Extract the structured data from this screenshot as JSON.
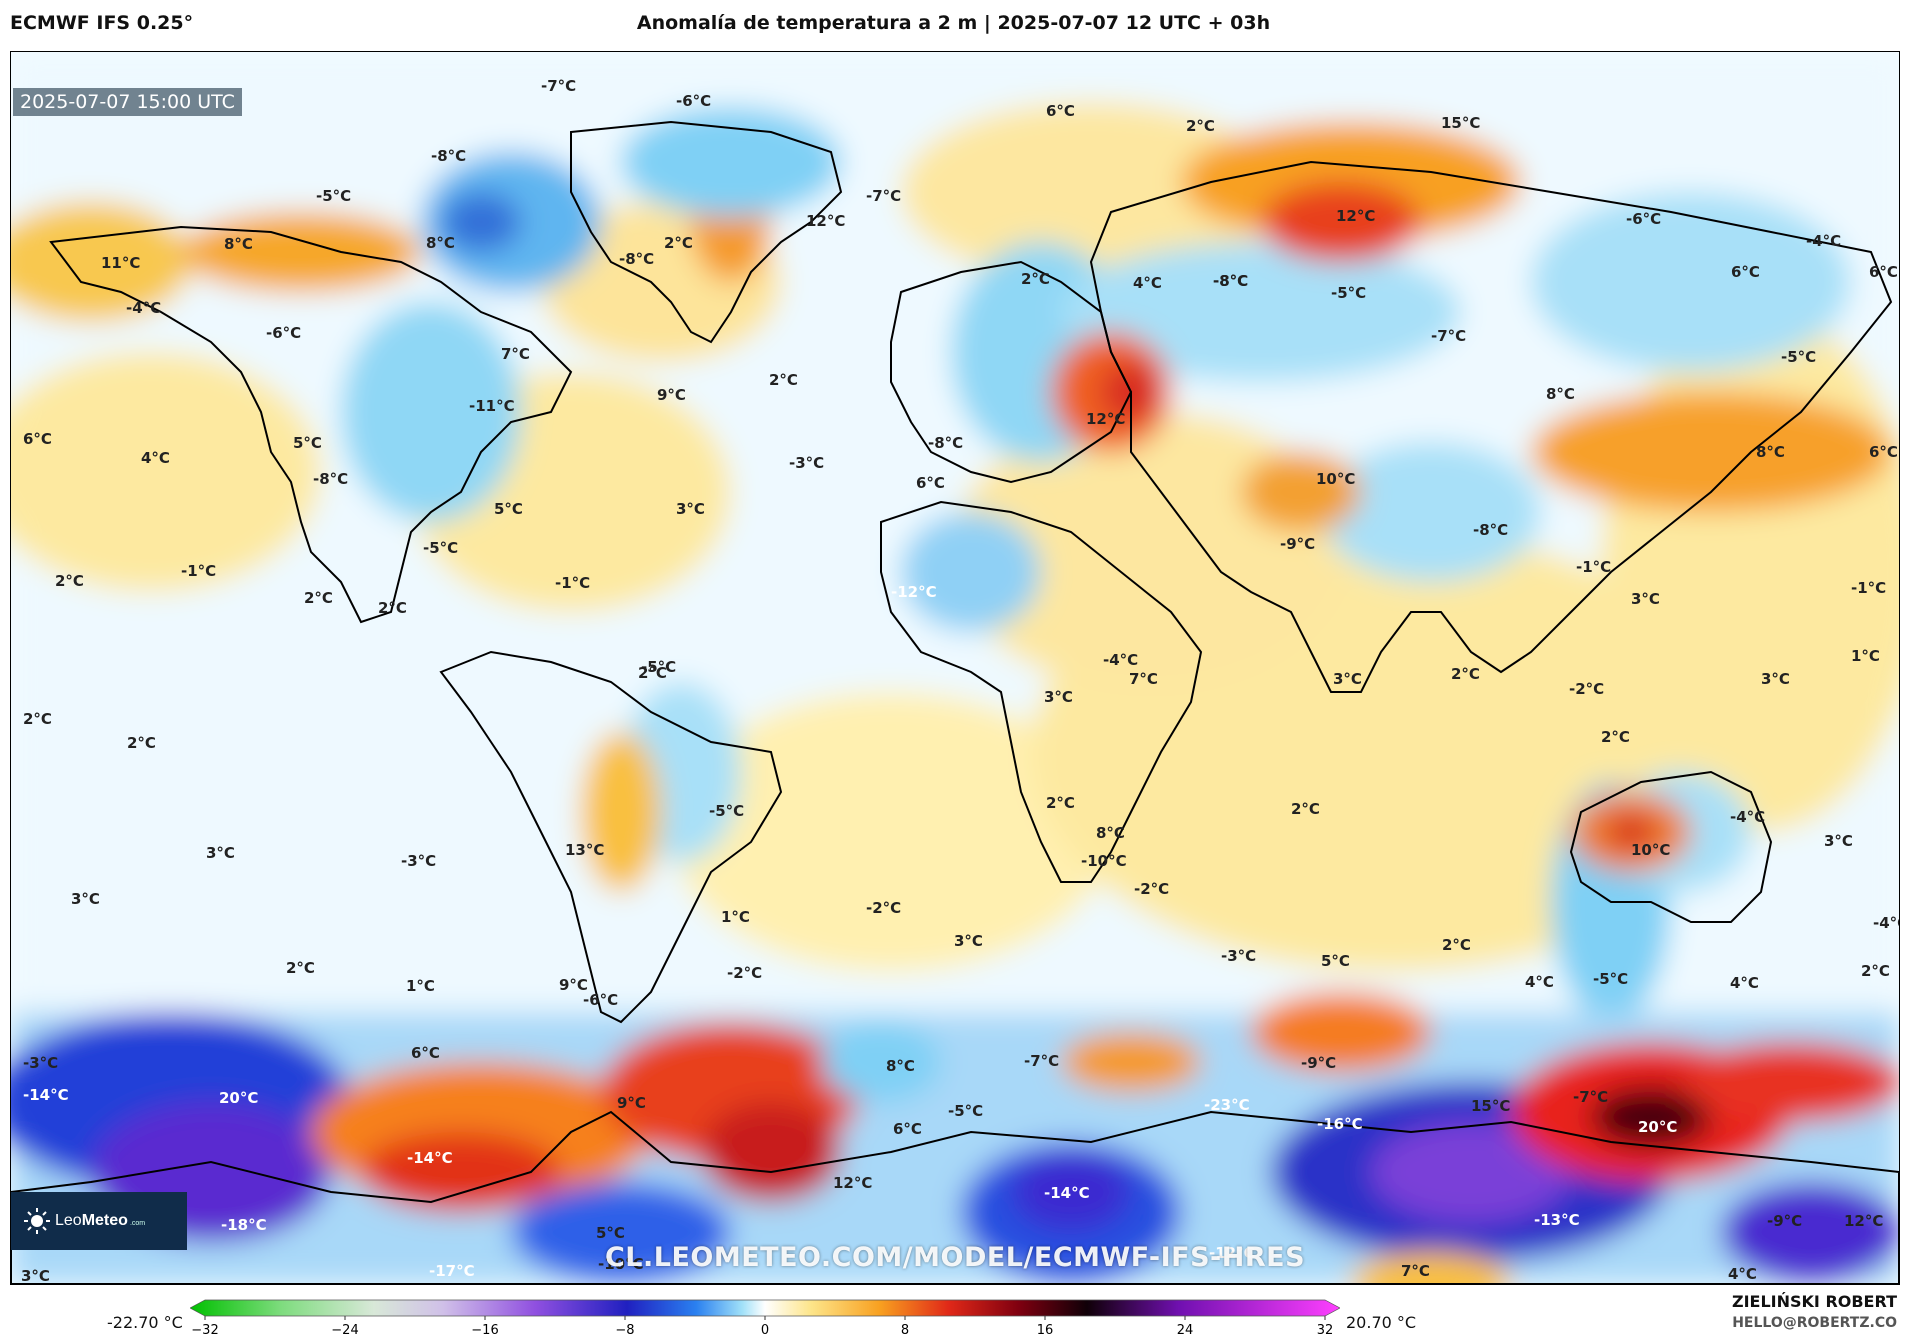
{
  "header": {
    "model": "ECMWF IFS 0.25°",
    "title": "Anomalía de temperatura a 2 m | 2025-07-07 12 UTC + 03h"
  },
  "map": {
    "timestamp": "2025-07-07 15:00 UTC",
    "watermark": "CL.LEOMETEO.COM/MODEL/ECMWF-IFS-HRES",
    "logo": {
      "name_light": "Leo",
      "name_bold": "Meteo",
      "suffix": ".com"
    },
    "labels": [
      {
        "text": "-7°C"
      },
      {
        "text": "-6°C"
      },
      {
        "text": "6°C"
      },
      {
        "text": "2°C"
      },
      {
        "text": "15°C"
      },
      {
        "text": "-8°C"
      },
      {
        "text": "-7°C"
      },
      {
        "text": "-5°C"
      },
      {
        "text": "12°C"
      },
      {
        "text": "8°C"
      },
      {
        "text": "2°C"
      },
      {
        "text": "-8°C"
      },
      {
        "text": "11°C"
      },
      {
        "text": "8°C"
      },
      {
        "text": "-4°C"
      },
      {
        "text": "-6°C"
      },
      {
        "text": "7°C"
      },
      {
        "text": "2°C"
      },
      {
        "text": "4°C"
      },
      {
        "text": "-8°C"
      },
      {
        "text": "-5°C"
      },
      {
        "text": "12°C"
      },
      {
        "text": "-6°C"
      },
      {
        "text": "-4°C"
      },
      {
        "text": "6°C"
      },
      {
        "text": "6°C"
      },
      {
        "text": "-8°C"
      },
      {
        "text": "-7°C"
      },
      {
        "text": "-5°C"
      },
      {
        "text": "6°C"
      },
      {
        "text": "4°C"
      },
      {
        "text": "5°C"
      },
      {
        "text": "-11°C"
      },
      {
        "text": "9°C"
      },
      {
        "text": "2°C"
      },
      {
        "text": "-8°C"
      },
      {
        "text": "12°C"
      },
      {
        "text": "8°C"
      },
      {
        "text": "8°C"
      },
      {
        "text": "6°C"
      },
      {
        "text": "-8°C"
      },
      {
        "text": "5°C"
      },
      {
        "text": "-3°C"
      },
      {
        "text": "6°C"
      },
      {
        "text": "10°C"
      },
      {
        "text": "3°C"
      },
      {
        "text": "-5°C"
      },
      {
        "text": "-1°C"
      },
      {
        "text": "-8°C"
      },
      {
        "text": "-9°C"
      },
      {
        "text": "2°C"
      },
      {
        "text": "-1°C"
      },
      {
        "text": "2°C"
      },
      {
        "text": "-1°C"
      },
      {
        "text": "-1°C"
      },
      {
        "text": "-12°C"
      },
      {
        "text": "3°C"
      },
      {
        "text": "1°C"
      },
      {
        "text": "2°C"
      },
      {
        "text": "-5°C"
      },
      {
        "text": "-4°C"
      },
      {
        "text": "7°C"
      },
      {
        "text": "3°C"
      },
      {
        "text": "3°C"
      },
      {
        "text": "2°C"
      },
      {
        "text": "2°C"
      },
      {
        "text": "2°C"
      },
      {
        "text": "3°C"
      },
      {
        "text": "2°C"
      },
      {
        "text": "-2°C"
      },
      {
        "text": "2°C"
      },
      {
        "text": "-5°C"
      },
      {
        "text": "2°C"
      },
      {
        "text": "2°C"
      },
      {
        "text": "-4°C"
      },
      {
        "text": "8°C"
      },
      {
        "text": "3°C"
      },
      {
        "text": "3°C"
      },
      {
        "text": "13°C"
      },
      {
        "text": "-3°C"
      },
      {
        "text": "-10°C"
      },
      {
        "text": "10°C"
      },
      {
        "text": "3°C"
      },
      {
        "text": "-2°C"
      },
      {
        "text": "-2°C"
      },
      {
        "text": "-4°C"
      },
      {
        "text": "1°C"
      },
      {
        "text": "3°C"
      },
      {
        "text": "-3°C"
      },
      {
        "text": "5°C"
      },
      {
        "text": "2°C"
      },
      {
        "text": "-5°C"
      },
      {
        "text": "-6°C"
      },
      {
        "text": "-2°C"
      },
      {
        "text": "2°C"
      },
      {
        "text": "1°C"
      },
      {
        "text": "9°C"
      },
      {
        "text": "4°C"
      },
      {
        "text": "2°C"
      },
      {
        "text": "4°C"
      },
      {
        "text": "-3°C"
      },
      {
        "text": "6°C"
      },
      {
        "text": "-7°C"
      },
      {
        "text": "8°C"
      },
      {
        "text": "-9°C"
      },
      {
        "text": "-14°C"
      },
      {
        "text": "20°C"
      },
      {
        "text": "9°C"
      },
      {
        "text": "-5°C"
      },
      {
        "text": "-23°C"
      },
      {
        "text": "15°C"
      },
      {
        "text": "-7°C"
      },
      {
        "text": "-16°C"
      },
      {
        "text": "20°C"
      },
      {
        "text": "6°C"
      },
      {
        "text": "-14°C"
      },
      {
        "text": "12°C"
      },
      {
        "text": "-14°C"
      },
      {
        "text": "-18°C"
      },
      {
        "text": "-9°C"
      },
      {
        "text": "12°C"
      },
      {
        "text": "5°C"
      },
      {
        "text": "-13°C"
      },
      {
        "text": "-12°C"
      },
      {
        "text": "-17°C"
      },
      {
        "text": "3°C"
      },
      {
        "text": "-10°C"
      },
      {
        "text": "7°C"
      },
      {
        "text": "4°C"
      }
    ]
  },
  "legend": {
    "min_label": "-22.70 °C",
    "max_label": "20.70 °C",
    "ticks": [
      "−32",
      "−24",
      "−16",
      "−8",
      "0",
      "8",
      "16",
      "24",
      "32"
    ]
  },
  "author": {
    "name": "ZIELIŃSKI ROBERT",
    "email": "HELLO@ROBERTZ.CO"
  }
}
